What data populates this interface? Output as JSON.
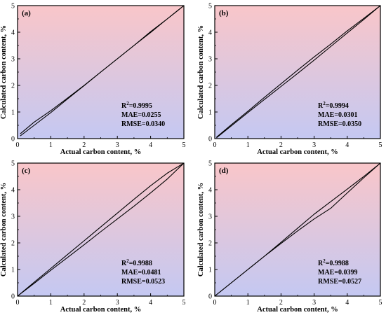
{
  "colors": {
    "top": "#f9c6c9",
    "bottom": "#c4c8f2",
    "line": "#000000"
  },
  "chart_data": [
    {
      "type": "line",
      "panel_label": "(a)",
      "xlabel": "Actual carbon content, %",
      "ylabel": "Calculated carbon content, %",
      "xlim": [
        0,
        5
      ],
      "ylim": [
        0,
        5
      ],
      "xticks": [
        "0",
        "1",
        "2",
        "3",
        "4",
        "5"
      ],
      "yticks": [
        "0",
        "1",
        "2",
        "3",
        "4",
        "5"
      ],
      "grid": false,
      "metrics": {
        "r2_prefix": "R",
        "r2_sup": "2",
        "r2_value": "=0.9995",
        "mae": "MAE=0.0255",
        "rmse": "RMSE=0.0340"
      },
      "series": [
        {
          "x": [
            0.08,
            0.5,
            1.0,
            1.5,
            2.0,
            2.5,
            3.0,
            3.5,
            4.0,
            4.5,
            5.0
          ],
          "y": [
            0.18,
            0.62,
            1.05,
            1.52,
            2.0,
            2.5,
            3.0,
            3.5,
            4.02,
            4.5,
            5.0
          ]
        },
        {
          "x": [
            0.08,
            0.5,
            1.0,
            1.5,
            2.0,
            2.5,
            3.0,
            3.5,
            4.0,
            4.5,
            5.0
          ],
          "y": [
            0.1,
            0.5,
            0.98,
            1.49,
            1.99,
            2.5,
            3.0,
            3.5,
            3.99,
            4.5,
            5.0
          ]
        }
      ]
    },
    {
      "type": "line",
      "panel_label": "(b)",
      "xlabel": "Actual carbon content, %",
      "ylabel": "Calculated carbon content, %",
      "xlim": [
        0,
        5
      ],
      "ylim": [
        0,
        5
      ],
      "xticks": [
        "0",
        "1",
        "2",
        "3",
        "4",
        "5"
      ],
      "yticks": [
        "0",
        "1",
        "2",
        "3",
        "4",
        "5"
      ],
      "grid": false,
      "metrics": {
        "r2_prefix": "R",
        "r2_sup": "2",
        "r2_value": "=0.9994",
        "mae": "MAE=0.0301",
        "rmse": "RMSE=0.0350"
      },
      "series": [
        {
          "x": [
            0.05,
            0.5,
            1.0,
            1.5,
            2.0,
            2.5,
            3.0,
            3.5,
            4.0,
            4.5,
            5.0
          ],
          "y": [
            0.05,
            0.52,
            1.03,
            1.55,
            2.06,
            2.57,
            3.07,
            3.55,
            4.05,
            4.52,
            5.0
          ]
        },
        {
          "x": [
            0.05,
            0.5,
            1.0,
            1.5,
            2.0,
            2.5,
            3.0,
            3.5,
            4.0,
            4.5,
            5.0
          ],
          "y": [
            0.03,
            0.48,
            0.98,
            1.47,
            1.96,
            2.45,
            2.95,
            3.46,
            3.97,
            4.48,
            5.0
          ]
        }
      ]
    },
    {
      "type": "line",
      "panel_label": "(c)",
      "xlabel": "Actual carbon content, %",
      "ylabel": "Calculated carbon content, %",
      "xlim": [
        0,
        5
      ],
      "ylim": [
        0,
        5
      ],
      "xticks": [
        "0",
        "1",
        "2",
        "3",
        "4",
        "5"
      ],
      "yticks": [
        "0",
        "1",
        "2",
        "3",
        "4",
        "5"
      ],
      "grid": false,
      "metrics": {
        "r2_prefix": "R",
        "r2_sup": "2",
        "r2_value": "=0.9988",
        "mae": "MAE=0.0481",
        "rmse": "RMSE=0.0523"
      },
      "series": [
        {
          "x": [
            0.0,
            0.5,
            1.0,
            1.5,
            2.0,
            2.5,
            3.0,
            3.5,
            4.0,
            4.5,
            5.0
          ],
          "y": [
            0.0,
            0.52,
            1.04,
            1.56,
            2.08,
            2.6,
            3.12,
            3.64,
            4.15,
            4.62,
            5.0
          ]
        },
        {
          "x": [
            0.0,
            0.5,
            1.0,
            1.5,
            2.0,
            2.5,
            3.0,
            3.5,
            4.0,
            4.5,
            5.0
          ],
          "y": [
            0.0,
            0.48,
            0.97,
            1.45,
            1.93,
            2.42,
            2.9,
            3.38,
            3.88,
            4.4,
            5.0
          ]
        }
      ]
    },
    {
      "type": "line",
      "panel_label": "(d)",
      "xlabel": "Actual carbon content, %",
      "ylabel": "Calculated carbon content, %",
      "xlim": [
        0,
        5
      ],
      "ylim": [
        0,
        5
      ],
      "xticks": [
        "0",
        "1",
        "2",
        "3",
        "4",
        "5"
      ],
      "yticks": [
        "0",
        "1",
        "2",
        "3",
        "4",
        "5"
      ],
      "grid": false,
      "metrics": {
        "r2_prefix": "R",
        "r2_sup": "2",
        "r2_value": "=0.9988",
        "mae": "MAE=0.0399",
        "rmse": "RMSE=0.0527"
      },
      "series": [
        {
          "x": [
            0.0,
            0.5,
            1.0,
            1.5,
            2.0,
            2.5,
            3.0,
            3.5,
            4.0,
            4.5,
            5.0
          ],
          "y": [
            0.0,
            0.5,
            1.0,
            1.5,
            2.02,
            2.55,
            3.08,
            3.55,
            4.02,
            4.5,
            5.0
          ]
        },
        {
          "x": [
            0.0,
            0.5,
            1.0,
            1.5,
            2.0,
            2.5,
            3.0,
            3.5,
            4.0,
            4.5,
            5.0
          ],
          "y": [
            0.0,
            0.5,
            1.0,
            1.5,
            1.98,
            2.45,
            2.9,
            3.3,
            3.88,
            4.45,
            5.0
          ]
        }
      ]
    }
  ]
}
